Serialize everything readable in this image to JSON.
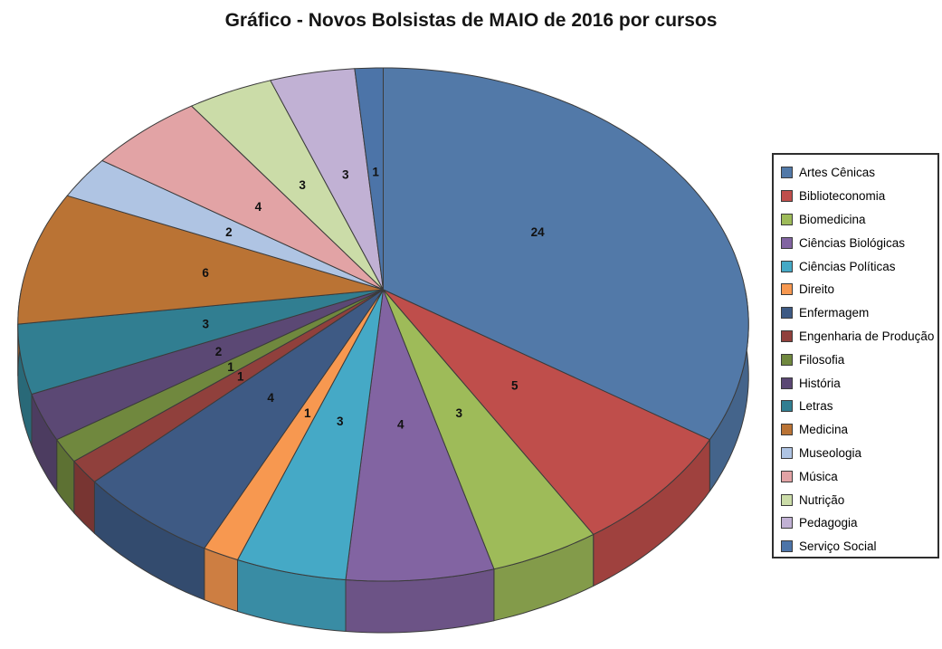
{
  "page": {
    "background": "#ffffff"
  },
  "chart_data": {
    "type": "pie",
    "style": "3d-perspective",
    "title": "Gráfico - Novos Bolsistas de MAIO de 2016 por cursos",
    "categories": [
      "Artes Cênicas",
      "Biblioteconomia",
      "Biomedicina",
      "Ciências Biológicas",
      "Ciências Políticas",
      "Direito",
      "Enfermagem",
      "Engenharia de Produção",
      "Filosofia",
      "História",
      "Letras",
      "Medicina",
      "Museologia",
      "Música",
      "Nutrição",
      "Pedagogia",
      "Serviço Social"
    ],
    "values": [
      24,
      5,
      3,
      4,
      3,
      1,
      4,
      1,
      1,
      2,
      3,
      6,
      2,
      4,
      3,
      3,
      1
    ],
    "colors": [
      "#5279A8",
      "#BF4E4B",
      "#9EBB59",
      "#8264A2",
      "#45A9C6",
      "#F79850",
      "#3E5A84",
      "#90403C",
      "#70883E",
      "#5B4874",
      "#317E91",
      "#BA7334",
      "#AFC4E3",
      "#E2A3A5",
      "#CBDCA8",
      "#C1B1D4",
      "#4C74A8"
    ],
    "total": 70,
    "data_labels": "value",
    "label_color": "#111111",
    "edge_color": "#3b3b3b",
    "start_angle_deg": 0,
    "direction": "clockwise",
    "legend_position": "right",
    "grid": false
  }
}
